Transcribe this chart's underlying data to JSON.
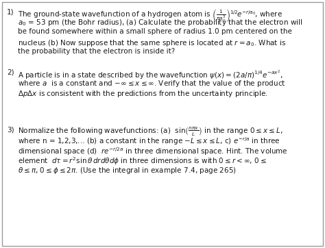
{
  "background_color": "#ffffff",
  "text_color": "#1a1a1a",
  "border_color": "#999999",
  "figsize": [
    4.74,
    3.62
  ],
  "dpi": 100,
  "p1_num": "1)",
  "p1_line1": "The ground-state wavefunction of a hydrogen atom is $\\left(\\frac{1}{\\pi a_0^3}\\right)^{1/2}\\!e^{-r/a_0}$, where",
  "p1_line2": "$a_0$ = 53 pm (the Bohr radius), (a) Calculate the probability that the electron will",
  "p1_line3": "be found somewhere within a small sphere of radius 1.0 pm centered on the",
  "p1_line4": "nucleus (b) Now suppose that the same sphere is located at $r = a_0$. What is",
  "p1_line5": "the probability that the electron is inside it?",
  "p2_num": "2)",
  "p2_line1": "A particle is in a state described by the wavefunction $\\psi(x) = (2a/\\pi)^{1/4}e^{-ax^2}$,",
  "p2_line2": "where $a$  is a constant and $-\\infty \\leq x \\leq \\infty$. Verify that the value of the product",
  "p2_line3": "$\\Delta p\\Delta x$ is consistent with the predictions from the uncertainty principle.",
  "p3_num": "3)",
  "p3_line1": "Normalize the following wavefunctions: (a)  $\\sin\\!\\left(\\frac{n\\pi x}{L}\\right)$ in the range $0 \\leq x \\leq L$,",
  "p3_line2": "where n = 1,2,3,... (b) a constant in the range $-L \\leq x \\leq L$, c) $e^{-r/a}$ in three",
  "p3_line3": "dimensional space (d)  $re^{-r/2a}$ in three dimensional space. Hint. The volume",
  "p3_line4": "element  $d\\tau = r^2 \\sin\\theta\\,drd\\theta d\\phi$ in three dimensions is with $0 \\leq r < \\infty$, $0 \\leq$",
  "p3_line5": "$\\theta \\leq \\pi$, $0 \\leq \\phi \\leq 2\\pi$. (Use the integral in example 7.4, page 265)"
}
